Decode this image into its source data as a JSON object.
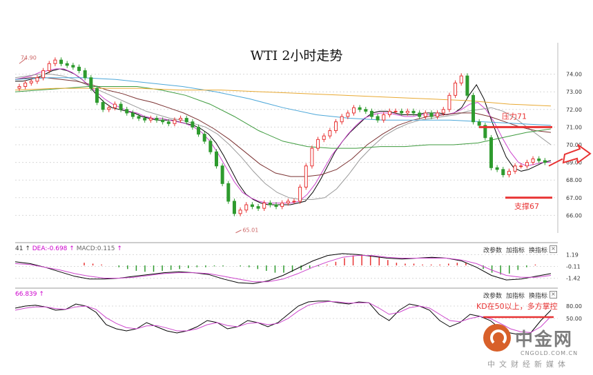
{
  "chart_data": {
    "type": "candlestick",
    "title": "WTI 2小时走势",
    "price_panel": {
      "ylim": [
        65,
        75
      ],
      "y_ticks": [
        "74.00",
        "73.00",
        "72.00",
        "71.00",
        "70.00",
        "69.00",
        "68.00",
        "67.00",
        "66.00"
      ],
      "grid": true,
      "annotations": {
        "high_marker": "74.90",
        "low_marker": "65.01",
        "resistance_label": "压力71",
        "resistance_level": 71,
        "support_label": "支撑67",
        "support_level": 67
      },
      "close_series": [
        73.3,
        73.5,
        73.6,
        73.8,
        74.2,
        74.6,
        74.8,
        74.6,
        74.5,
        74.4,
        74.2,
        73.8,
        73.2,
        72.4,
        72.0,
        72.1,
        72.3,
        72.0,
        71.8,
        71.6,
        71.5,
        71.4,
        71.5,
        71.4,
        71.3,
        71.2,
        71.4,
        71.5,
        71.3,
        71.0,
        70.6,
        70.2,
        69.6,
        68.8,
        67.8,
        66.8,
        66.1,
        66.3,
        66.6,
        66.5,
        66.4,
        66.7,
        66.6,
        66.5,
        66.7,
        66.8,
        66.8,
        67.6,
        68.8,
        69.8,
        70.3,
        70.5,
        70.8,
        71.3,
        71.6,
        71.8,
        72.1,
        72.0,
        71.9,
        71.6,
        71.4,
        71.7,
        71.9,
        71.9,
        71.8,
        71.9,
        71.8,
        71.6,
        71.8,
        71.6,
        71.8,
        72.0,
        72.8,
        73.5,
        73.9,
        72.8,
        71.3,
        71.1,
        70.4,
        68.7,
        68.6,
        68.3,
        68.5,
        68.8,
        68.8,
        69.0,
        69.2,
        69.1,
        69.0
      ],
      "moving_averages": [
        {
          "color": "#000000",
          "values": [
            73.6,
            73.6,
            73.7,
            73.8,
            74.0,
            74.2,
            74.3,
            74.2,
            74.0,
            73.7,
            73.3,
            72.8,
            72.4,
            72.1,
            72.0,
            71.9,
            71.8,
            71.6,
            71.5,
            71.4,
            71.4,
            71.4,
            71.3,
            71.2,
            71.1,
            70.9,
            70.6,
            70.1,
            69.4,
            68.6,
            67.8,
            67.2,
            66.9,
            66.7,
            66.6,
            66.6,
            66.6,
            66.6,
            66.7,
            66.8,
            67.3,
            68.0,
            68.8,
            69.6,
            70.2,
            70.7,
            71.1,
            71.5,
            71.8,
            71.9,
            71.9,
            71.8,
            71.7,
            71.7,
            71.7,
            71.8,
            71.8,
            71.8,
            71.7,
            71.8,
            72.1,
            72.8,
            73.4,
            72.6,
            71.4,
            70.3,
            69.3,
            68.7,
            68.5,
            68.6,
            68.8,
            69.0,
            69.1
          ]
        },
        {
          "color": "#cc44cc",
          "values": [
            73.7,
            73.8,
            73.9,
            74.1,
            74.2,
            74.3,
            74.3,
            74.1,
            73.8,
            73.4,
            73.0,
            72.6,
            72.3,
            72.1,
            71.9,
            71.8,
            71.6,
            71.5,
            71.5,
            71.4,
            71.3,
            71.2,
            71.0,
            70.7,
            70.2,
            69.5,
            68.7,
            67.9,
            67.3,
            67.0,
            66.8,
            66.7,
            66.7,
            66.7,
            66.7,
            66.8,
            67.2,
            67.8,
            68.6,
            69.4,
            70.0,
            70.6,
            71.1,
            71.5,
            71.7,
            71.8,
            71.8,
            71.7,
            71.6,
            71.6,
            71.7,
            71.7,
            71.7,
            71.7,
            71.8,
            72.0,
            72.3,
            72.4,
            72.0,
            71.3,
            70.4,
            69.6,
            69.0,
            68.8,
            68.9,
            69.0,
            69.0
          ]
        },
        {
          "color": "#999999",
          "values": [
            73.8,
            73.9,
            74.0,
            74.0,
            73.9,
            73.7,
            73.4,
            73.1,
            72.8,
            72.5,
            72.2,
            71.9,
            71.7,
            71.5,
            71.4,
            71.2,
            71.0,
            70.6,
            70.0,
            69.3,
            68.5,
            67.8,
            67.3,
            67.0,
            66.9,
            66.9,
            67.0,
            67.5,
            68.3,
            69.2,
            69.9,
            70.5,
            70.9,
            71.2,
            71.4,
            71.5,
            71.6,
            71.7,
            71.9,
            72.0,
            72.1,
            71.9,
            71.5,
            71.0,
            70.5,
            70.0
          ]
        },
        {
          "color": "#7a3030",
          "values": [
            73.7,
            73.8,
            73.8,
            73.7,
            73.6,
            73.4,
            73.1,
            72.9,
            72.6,
            72.4,
            72.1,
            71.8,
            71.4,
            70.9,
            70.3,
            69.6,
            68.9,
            68.4,
            68.2,
            68.2,
            68.3,
            68.6,
            69.2,
            70.0,
            70.6,
            71.1,
            71.4,
            71.6,
            71.7,
            71.8,
            71.8,
            71.6,
            71.3,
            71.0,
            70.8,
            70.7
          ]
        },
        {
          "color": "#3c9a3c",
          "values": [
            73.0,
            73.1,
            73.2,
            73.3,
            73.3,
            73.3,
            73.1,
            72.8,
            72.3,
            71.6,
            70.8,
            70.2,
            69.9,
            69.8,
            69.8,
            69.9,
            69.9,
            70.0,
            70.0,
            70.1,
            70.4,
            70.7,
            70.9
          ]
        },
        {
          "color": "#4aa6d8",
          "values": [
            73.7,
            73.8,
            73.8,
            73.7,
            73.5,
            73.3,
            73.0,
            72.6,
            72.1,
            71.7,
            71.5,
            71.4,
            71.4,
            71.4,
            71.3,
            71.2,
            71.1
          ]
        },
        {
          "color": "#e8a830",
          "values": [
            73.1,
            73.2,
            73.2,
            73.2,
            73.1,
            73.1,
            73.0,
            72.9,
            72.8,
            72.7,
            72.6,
            72.5,
            72.3,
            72.2
          ]
        }
      ]
    },
    "macd_panel": {
      "label_left": "41",
      "dea_label": "DEA:-0.698",
      "macd_label": "MACD:0.115",
      "y_ticks": [
        "1.19",
        "-0.11",
        "-1.42"
      ],
      "buttons": [
        "改参数",
        "加指标",
        "换指标"
      ],
      "histogram": [
        0.3,
        0.2,
        0.1,
        0.0,
        -0.2,
        -0.4,
        -0.6,
        -0.7,
        -0.7,
        -0.6,
        -0.5,
        -0.4,
        -0.3,
        -0.2,
        -0.2,
        -0.1,
        -0.1,
        0.0,
        -0.1,
        -0.2,
        -0.4,
        -0.6,
        -0.8,
        -0.8,
        -0.7,
        -0.5,
        -0.3,
        -0.1,
        0.1,
        0.4,
        0.8,
        1.1,
        1.2,
        1.1,
        0.9,
        0.6,
        0.3,
        0.2,
        0.2,
        0.1,
        0.1,
        0.1,
        0.2,
        0.3,
        0.3,
        0.0,
        -0.4,
        -0.8,
        -1.0,
        -0.9,
        -0.5,
        -0.2,
        0.1
      ],
      "dif": [
        0.4,
        0.2,
        -0.2,
        -0.7,
        -1.2,
        -1.5,
        -1.5,
        -1.4,
        -1.2,
        -1.0,
        -0.8,
        -0.7,
        -0.8,
        -1.0,
        -1.5,
        -1.9,
        -2.0,
        -1.7,
        -1.1,
        -0.3,
        0.5,
        1.1,
        1.3,
        1.2,
        1.0,
        0.8,
        0.7,
        0.8,
        0.9,
        0.8,
        0.5,
        -0.2,
        -1.1,
        -1.6,
        -1.5,
        -1.2,
        -0.9
      ],
      "dea": [
        0.2,
        0.1,
        -0.2,
        -0.5,
        -0.9,
        -1.2,
        -1.4,
        -1.4,
        -1.3,
        -1.1,
        -0.9,
        -0.8,
        -0.8,
        -0.9,
        -1.2,
        -1.5,
        -1.8,
        -1.8,
        -1.5,
        -0.9,
        -0.2,
        0.4,
        0.9,
        1.1,
        1.1,
        0.9,
        0.8,
        0.8,
        0.8,
        0.8,
        0.6,
        0.2,
        -0.5,
        -1.1,
        -1.3,
        -1.3,
        -1.1
      ]
    },
    "kd_panel": {
      "label_left": "66.839",
      "y_ticks": [
        "80.00",
        "50.00"
      ],
      "buttons": [
        "改参数",
        "加指标",
        "换指标"
      ],
      "annotation": "KD在50以上，多方掌控",
      "annotation_level": 50,
      "k": [
        75,
        80,
        82,
        78,
        70,
        72,
        85,
        80,
        65,
        35,
        25,
        20,
        25,
        40,
        30,
        20,
        15,
        20,
        30,
        45,
        40,
        25,
        30,
        45,
        40,
        30,
        40,
        60,
        80,
        90,
        92,
        92,
        88,
        85,
        90,
        88,
        60,
        45,
        70,
        85,
        80,
        70,
        45,
        30,
        40,
        60,
        55,
        45,
        25,
        15,
        10,
        15,
        45,
        70
      ],
      "d": [
        70,
        75,
        78,
        78,
        74,
        72,
        78,
        80,
        72,
        52,
        38,
        28,
        25,
        32,
        33,
        27,
        20,
        20,
        25,
        35,
        40,
        33,
        30,
        38,
        40,
        35,
        38,
        50,
        68,
        82,
        88,
        91,
        90,
        87,
        88,
        88,
        75,
        60,
        65,
        76,
        80,
        75,
        60,
        45,
        42,
        50,
        55,
        50,
        38,
        25,
        18,
        16,
        30,
        55
      ]
    }
  },
  "colors": {
    "up": "#e83232",
    "down": "#2e9b2e",
    "annotation": "#e83232",
    "grid": "#d8d8d8"
  },
  "brand": {
    "name": "中金网",
    "url": "CNGOLD.COM.CN",
    "slogan": "中文财经新媒体"
  },
  "icons": {
    "panel_arrow": "up-arrow-icon",
    "close": "close-icon",
    "forecast": "right-arrow-icon"
  }
}
